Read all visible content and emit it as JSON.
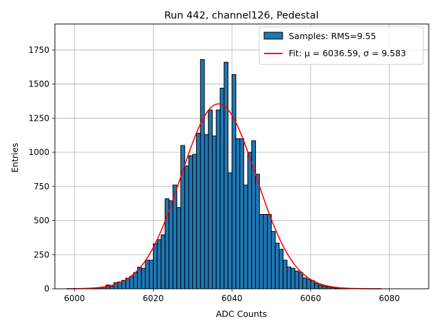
{
  "chart_data": {
    "type": "bar",
    "title": "Run 442, channel126, Pedestal",
    "xlabel": "ADC Counts",
    "ylabel": "Entries",
    "xlim": [
      5995,
      6090
    ],
    "ylim": [
      0,
      1940
    ],
    "xticks": [
      6000,
      6020,
      6040,
      6060,
      6080
    ],
    "yticks": [
      0,
      250,
      500,
      750,
      1000,
      1250,
      1500,
      1750
    ],
    "grid": true,
    "legend_position": "top-right",
    "histogram": {
      "name": "Samples: RMS=9.55",
      "color": "#1f77b4",
      "edge_color": "#000000",
      "bin_width": 1,
      "bin_starts": [
        6004,
        6005,
        6006,
        6007,
        6008,
        6009,
        6010,
        6011,
        6012,
        6013,
        6014,
        6015,
        6016,
        6017,
        6018,
        6019,
        6020,
        6021,
        6022,
        6023,
        6024,
        6025,
        6026,
        6027,
        6028,
        6029,
        6030,
        6031,
        6032,
        6033,
        6034,
        6035,
        6036,
        6037,
        6038,
        6039,
        6040,
        6041,
        6042,
        6043,
        6044,
        6045,
        6046,
        6047,
        6048,
        6049,
        6050,
        6051,
        6052,
        6053,
        6054,
        6055,
        6056,
        6057,
        6058,
        6059,
        6060,
        6061,
        6062,
        6063,
        6064,
        6065,
        6066,
        6067,
        6068,
        6069
      ],
      "values": [
        3,
        5,
        8,
        14,
        28,
        20,
        45,
        50,
        62,
        78,
        92,
        118,
        158,
        150,
        210,
        210,
        330,
        360,
        395,
        660,
        645,
        760,
        595,
        1050,
        900,
        975,
        985,
        1140,
        1680,
        1130,
        1310,
        1120,
        1310,
        1470,
        1660,
        850,
        1570,
        1100,
        1100,
        760,
        1000,
        1085,
        840,
        545,
        545,
        545,
        420,
        335,
        290,
        210,
        160,
        150,
        130,
        120,
        80,
        70,
        60,
        40,
        28,
        20,
        15,
        10,
        5,
        3,
        2,
        1
      ]
    },
    "fit": {
      "name": "Fit: μ = 6036.59, σ = 9.583",
      "color": "#ff0000",
      "mu": 6036.59,
      "sigma": 9.583,
      "amplitude": 1355,
      "x_range": [
        5998,
        6078
      ]
    }
  }
}
